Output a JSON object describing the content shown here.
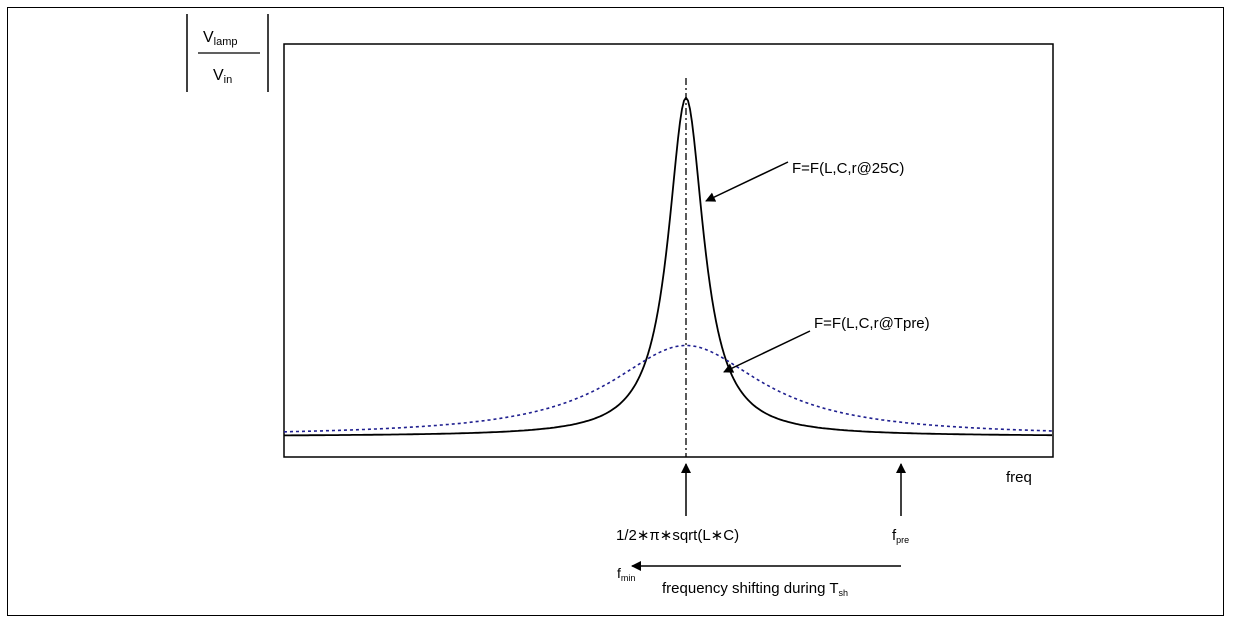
{
  "y_axis_label": {
    "numerator": "V",
    "numerator_sub": "lamp",
    "denominator": "V",
    "denominator_sub": "in"
  },
  "x_axis_label": "freq",
  "curves": [
    {
      "label": "F=F(L,C,r@25C)",
      "style": "solid",
      "color": "#000000",
      "peak": 0.87,
      "baseline": 0.05,
      "halfwidth": 0.028
    },
    {
      "label": "F=F(L,C,r@Tpre)",
      "style": "dotted",
      "color": "#1f1f8f",
      "peak": 0.27,
      "baseline": 0.05,
      "halfwidth": 0.12
    }
  ],
  "resonance_marker": {
    "label": "1/2∗π∗sqrt(L∗C)"
  },
  "fpre_marker": {
    "label": "f",
    "sub": "pre"
  },
  "shift_arrow": {
    "fmin_label": "f",
    "fmin_sub": "min",
    "text": "frequency shifting during T",
    "text_sub": "sh"
  }
}
